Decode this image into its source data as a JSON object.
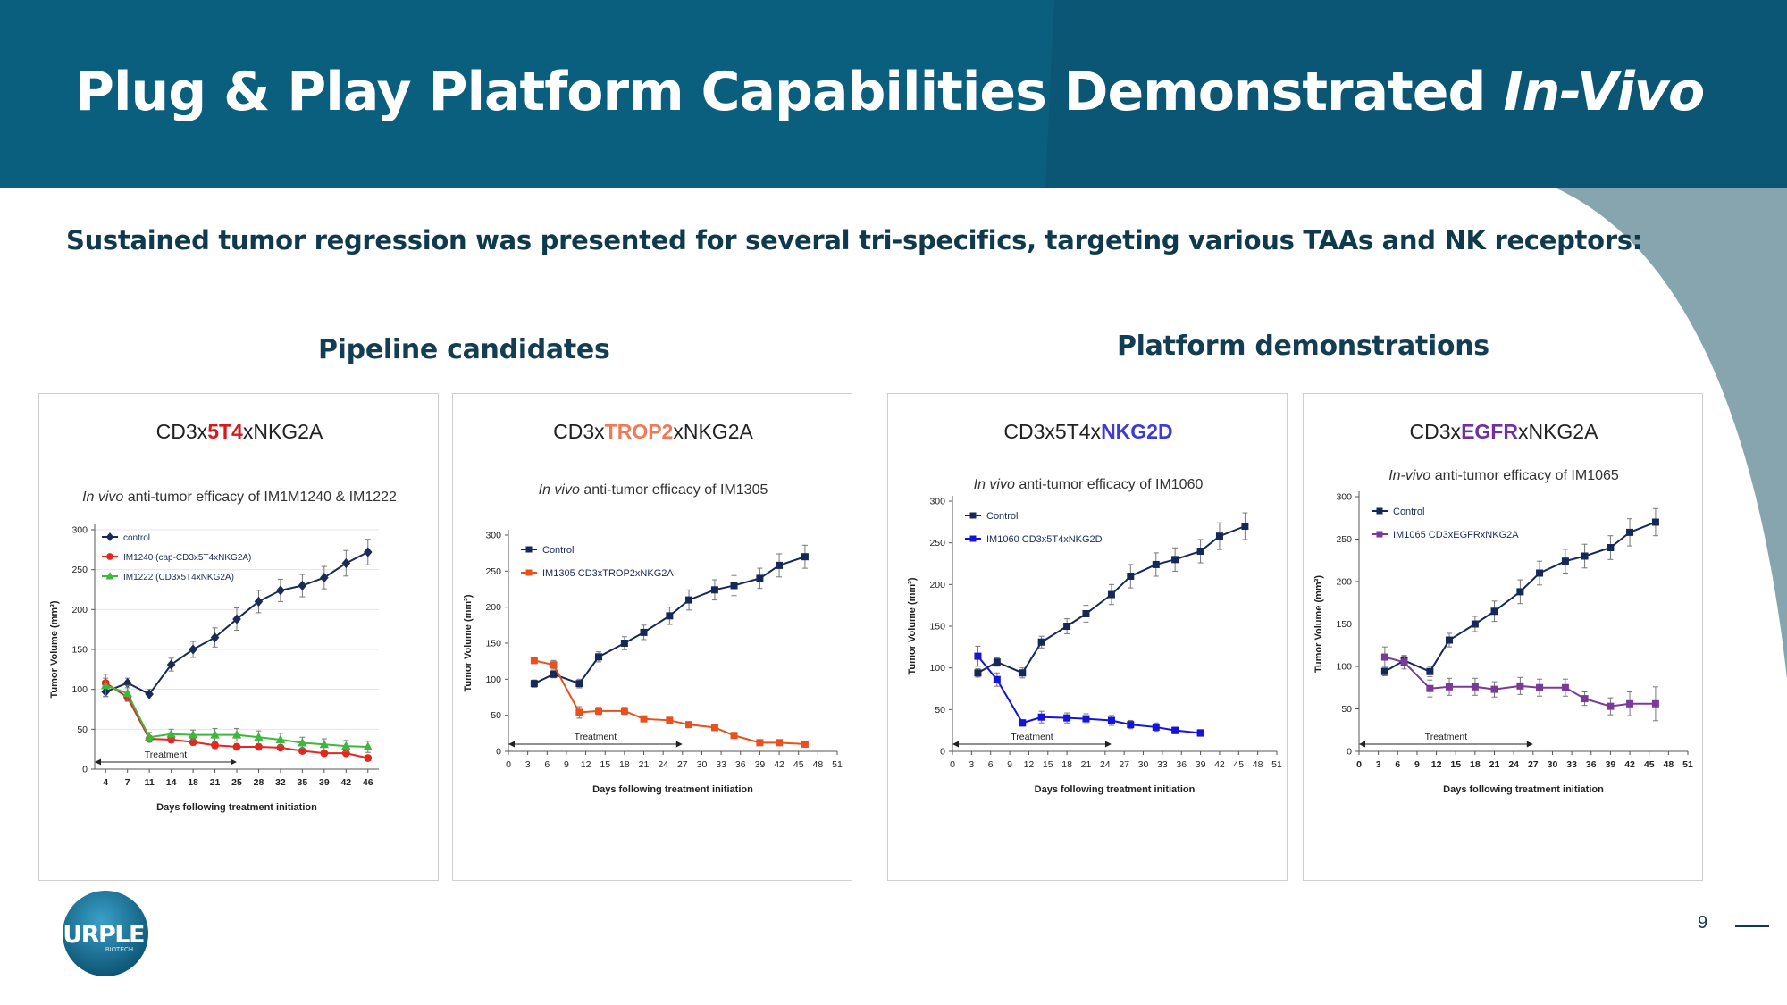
{
  "slide": {
    "title_main": "Plug & Play Platform Capabilities Demonstrated ",
    "title_italic": "In-Vivo",
    "subtitle": "Sustained tumor regression was presented for several tri-specifics, targeting various TAAs and NK receptors:",
    "section_left": "Pipeline candidates",
    "section_right": "Platform demonstrations",
    "page_number": "9",
    "logo_text": "PURPLE",
    "logo_subtext": "BIOTECH",
    "colors": {
      "banner": "#0a5f7e",
      "banner_dark": "#0b4f6c",
      "heading": "#123d52"
    }
  },
  "chart_data": [
    {
      "type": "line",
      "heading_pre": "CD3x",
      "heading_hl": "5T4",
      "heading_post": "xNKG2A",
      "heading_color": "#d7191c",
      "title_italic": "In vivo",
      "title_rest": " anti-tumor efficacy of IM1M1240 & IM1222",
      "xlabel": "Days following treatment initiation",
      "ylabel": "Tumor Volume (mm³)",
      "ylim": [
        0,
        300
      ],
      "yticks": [
        0,
        50,
        100,
        150,
        200,
        250,
        300
      ],
      "x_categorical": true,
      "xticks": [
        "4",
        "7",
        "11",
        "14",
        "18",
        "21",
        "25",
        "28",
        "32",
        "35",
        "39",
        "42",
        "46"
      ],
      "grid": true,
      "legend_position": "top-left",
      "treatment_label": "Treatment",
      "treatment_range": [
        4,
        25
      ],
      "series": [
        {
          "name": "control",
          "color": "#1a2b5a",
          "marker": "diamond",
          "x": [
            4,
            7,
            11,
            14,
            18,
            21,
            25,
            28,
            32,
            35,
            39,
            42,
            46
          ],
          "y": [
            97,
            108,
            94,
            131,
            150,
            165,
            188,
            210,
            224,
            230,
            240,
            258,
            272
          ],
          "err": [
            6,
            6,
            6,
            8,
            10,
            12,
            14,
            14,
            14,
            14,
            14,
            16,
            16
          ]
        },
        {
          "name": "IM1240 (cap-CD3x5T4xNKG2A)",
          "color": "#e5261f",
          "marker": "circle",
          "x": [
            4,
            7,
            11,
            14,
            18,
            21,
            25,
            28,
            32,
            35,
            39,
            42,
            46
          ],
          "y": [
            108,
            90,
            38,
            37,
            34,
            30,
            28,
            28,
            27,
            23,
            20,
            20,
            14
          ],
          "err": [
            6,
            5,
            4,
            4,
            4,
            4,
            4,
            3,
            3,
            3,
            3,
            3,
            3
          ]
        },
        {
          "name": "IM1222 (CD3x5T4xNKG2A)",
          "color": "#3cb83c",
          "marker": "triangle",
          "x": [
            4,
            7,
            11,
            14,
            18,
            21,
            25,
            28,
            32,
            35,
            39,
            42,
            46
          ],
          "y": [
            105,
            95,
            40,
            44,
            43,
            43,
            43,
            40,
            37,
            33,
            31,
            29,
            28
          ],
          "err": [
            14,
            10,
            6,
            6,
            6,
            8,
            8,
            8,
            8,
            7,
            7,
            7,
            7
          ]
        }
      ]
    },
    {
      "type": "line",
      "heading_pre": "CD3x",
      "heading_hl": "TROP2",
      "heading_post": "xNKG2A",
      "heading_color": "#f07a55",
      "title_italic": "In vivo",
      "title_rest": " anti-tumor efficacy of IM1305",
      "xlabel": "Days following treatment initiation",
      "ylabel": "Tumor Volume (mm³)",
      "ylim": [
        0,
        300
      ],
      "yticks": [
        0,
        50,
        100,
        150,
        200,
        250,
        300
      ],
      "xlim": [
        0,
        51
      ],
      "xticks": [
        "0",
        "3",
        "6",
        "9",
        "12",
        "15",
        "18",
        "21",
        "24",
        "27",
        "30",
        "33",
        "36",
        "39",
        "42",
        "45",
        "48",
        "51"
      ],
      "grid": false,
      "legend_position": "top-left",
      "treatment_label": "Treatment",
      "treatment_range": [
        0,
        27
      ],
      "series": [
        {
          "name": "Control",
          "color": "#15285a",
          "marker": "square",
          "x": [
            4,
            7,
            11,
            14,
            18,
            21,
            25,
            28,
            32,
            35,
            39,
            42,
            46
          ],
          "y": [
            94,
            107,
            94,
            131,
            150,
            165,
            188,
            210,
            224,
            230,
            240,
            258,
            270
          ],
          "err": [
            5,
            5,
            6,
            7,
            9,
            10,
            12,
            14,
            14,
            14,
            14,
            16,
            16
          ]
        },
        {
          "name": "IM1305 CD3xTROP2xNKG2A",
          "color": "#e8501e",
          "marker": "square",
          "x": [
            4,
            7,
            11,
            14,
            18,
            21,
            25,
            28,
            32,
            35,
            39,
            42,
            46
          ],
          "y": [
            126,
            120,
            54,
            56,
            56,
            45,
            43,
            37,
            33,
            22,
            12,
            12,
            10
          ],
          "err": [
            4,
            6,
            8,
            5,
            5,
            4,
            4,
            4,
            4,
            4,
            3,
            3,
            3
          ]
        }
      ]
    },
    {
      "type": "line",
      "heading_pre": "CD3x5T4x",
      "heading_hl": "NKG2D",
      "heading_post": "",
      "heading_color": "#3b3bd8",
      "title_italic": "In vivo",
      "title_rest": " anti-tumor efficacy of IM1060",
      "xlabel": "Days following treatment initiation",
      "ylabel": "Tumor Volume (mm³)",
      "ylim": [
        0,
        300
      ],
      "yticks": [
        0,
        50,
        100,
        150,
        200,
        250,
        300
      ],
      "xlim": [
        0,
        51
      ],
      "xticks": [
        "0",
        "3",
        "6",
        "9",
        "12",
        "15",
        "18",
        "21",
        "24",
        "27",
        "30",
        "33",
        "36",
        "39",
        "42",
        "45",
        "48",
        "51"
      ],
      "grid": false,
      "legend_position": "top-left",
      "treatment_label": "Treatment",
      "treatment_range": [
        0,
        25
      ],
      "series": [
        {
          "name": "Control",
          "color": "#15285a",
          "marker": "square",
          "x": [
            4,
            7,
            11,
            14,
            18,
            21,
            25,
            28,
            32,
            35,
            39,
            42,
            46
          ],
          "y": [
            94,
            107,
            94,
            131,
            150,
            165,
            188,
            210,
            224,
            230,
            240,
            258,
            270
          ],
          "err": [
            5,
            5,
            6,
            7,
            9,
            10,
            12,
            14,
            14,
            14,
            14,
            16,
            16
          ]
        },
        {
          "name": "IM1060 CD3x5T4xNKG2D",
          "color": "#1414d8",
          "marker": "square",
          "x": [
            4,
            7,
            11,
            14,
            18,
            21,
            25,
            28,
            32,
            35,
            39
          ],
          "y": [
            114,
            86,
            34,
            41,
            40,
            39,
            37,
            32,
            29,
            25,
            22
          ],
          "err": [
            12,
            8,
            4,
            7,
            6,
            6,
            6,
            5,
            5,
            4,
            4
          ]
        }
      ]
    },
    {
      "type": "line",
      "heading_pre": "CD3x",
      "heading_hl": "EGFR",
      "heading_post": "xNKG2A",
      "heading_color": "#7030a0",
      "title_italic": "In-vivo",
      "title_rest": " anti-tumor efficacy of IM1065",
      "xlabel": "Days following treatment initiation",
      "ylabel": "Tumor Volume (mm³)",
      "ylim": [
        0,
        300
      ],
      "yticks": [
        0,
        50,
        100,
        150,
        200,
        250,
        300
      ],
      "xlim": [
        0,
        51
      ],
      "xticks": [
        "0",
        "3",
        "6",
        "9",
        "12",
        "15",
        "18",
        "21",
        "24",
        "27",
        "30",
        "33",
        "36",
        "39",
        "42",
        "45",
        "48",
        "51"
      ],
      "grid": false,
      "legend_position": "top-left",
      "treatment_label": "Treatment",
      "treatment_range": [
        0,
        27
      ],
      "series": [
        {
          "name": "Control",
          "color": "#15285a",
          "marker": "square",
          "x": [
            4,
            7,
            11,
            14,
            18,
            21,
            25,
            28,
            32,
            35,
            39,
            42,
            46
          ],
          "y": [
            94,
            107,
            94,
            131,
            150,
            165,
            188,
            210,
            224,
            230,
            240,
            258,
            270
          ],
          "err": [
            5,
            5,
            6,
            8,
            9,
            12,
            14,
            14,
            14,
            14,
            14,
            16,
            16
          ]
        },
        {
          "name": "IM1065 CD3xEGFRxNKG2A",
          "color": "#7a3a9a",
          "marker": "square",
          "x": [
            4,
            7,
            11,
            14,
            18,
            21,
            25,
            28,
            32,
            35,
            39,
            42,
            46
          ],
          "y": [
            111,
            105,
            74,
            76,
            76,
            73,
            77,
            75,
            75,
            62,
            53,
            56,
            56
          ],
          "err": [
            12,
            8,
            10,
            10,
            10,
            9,
            10,
            10,
            10,
            8,
            10,
            14,
            20
          ]
        }
      ]
    }
  ]
}
